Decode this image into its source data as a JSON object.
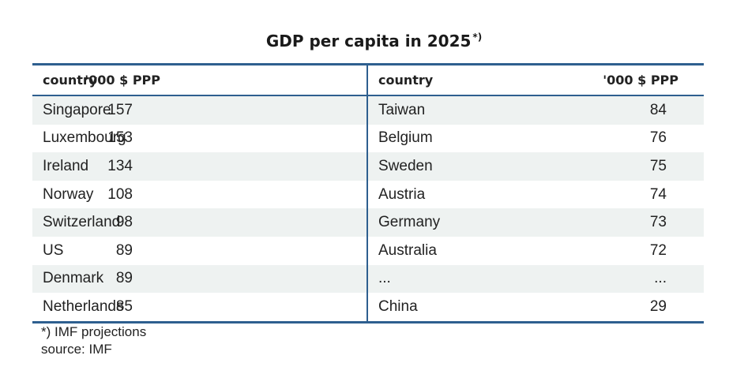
{
  "title": "GDP per capita in 2025",
  "title_footnote_mark": "*)",
  "header": {
    "country": "country",
    "value": "'000 $ PPP"
  },
  "left_rows": [
    {
      "country": "Singapore",
      "value": "157"
    },
    {
      "country": "Luxembourg",
      "value": "153"
    },
    {
      "country": "Ireland",
      "value": "134"
    },
    {
      "country": "Norway",
      "value": "108"
    },
    {
      "country": "Switzerland",
      "value": "98"
    },
    {
      "country": "US",
      "value": "89"
    },
    {
      "country": "Denmark",
      "value": "89"
    },
    {
      "country": "Netherlands",
      "value": "85"
    }
  ],
  "right_rows": [
    {
      "country": "Taiwan",
      "value": "84"
    },
    {
      "country": "Belgium",
      "value": "76"
    },
    {
      "country": "Sweden",
      "value": "75"
    },
    {
      "country": "Austria",
      "value": "74"
    },
    {
      "country": "Germany",
      "value": "73"
    },
    {
      "country": "Australia",
      "value": "72"
    },
    {
      "country": "...",
      "value": "..."
    },
    {
      "country": "China",
      "value": "29"
    }
  ],
  "notes": {
    "footnote": "*) IMF projections",
    "source": "source: IMF"
  },
  "colors": {
    "rule": "#2e5f8f",
    "shade": "#eef2f1"
  }
}
